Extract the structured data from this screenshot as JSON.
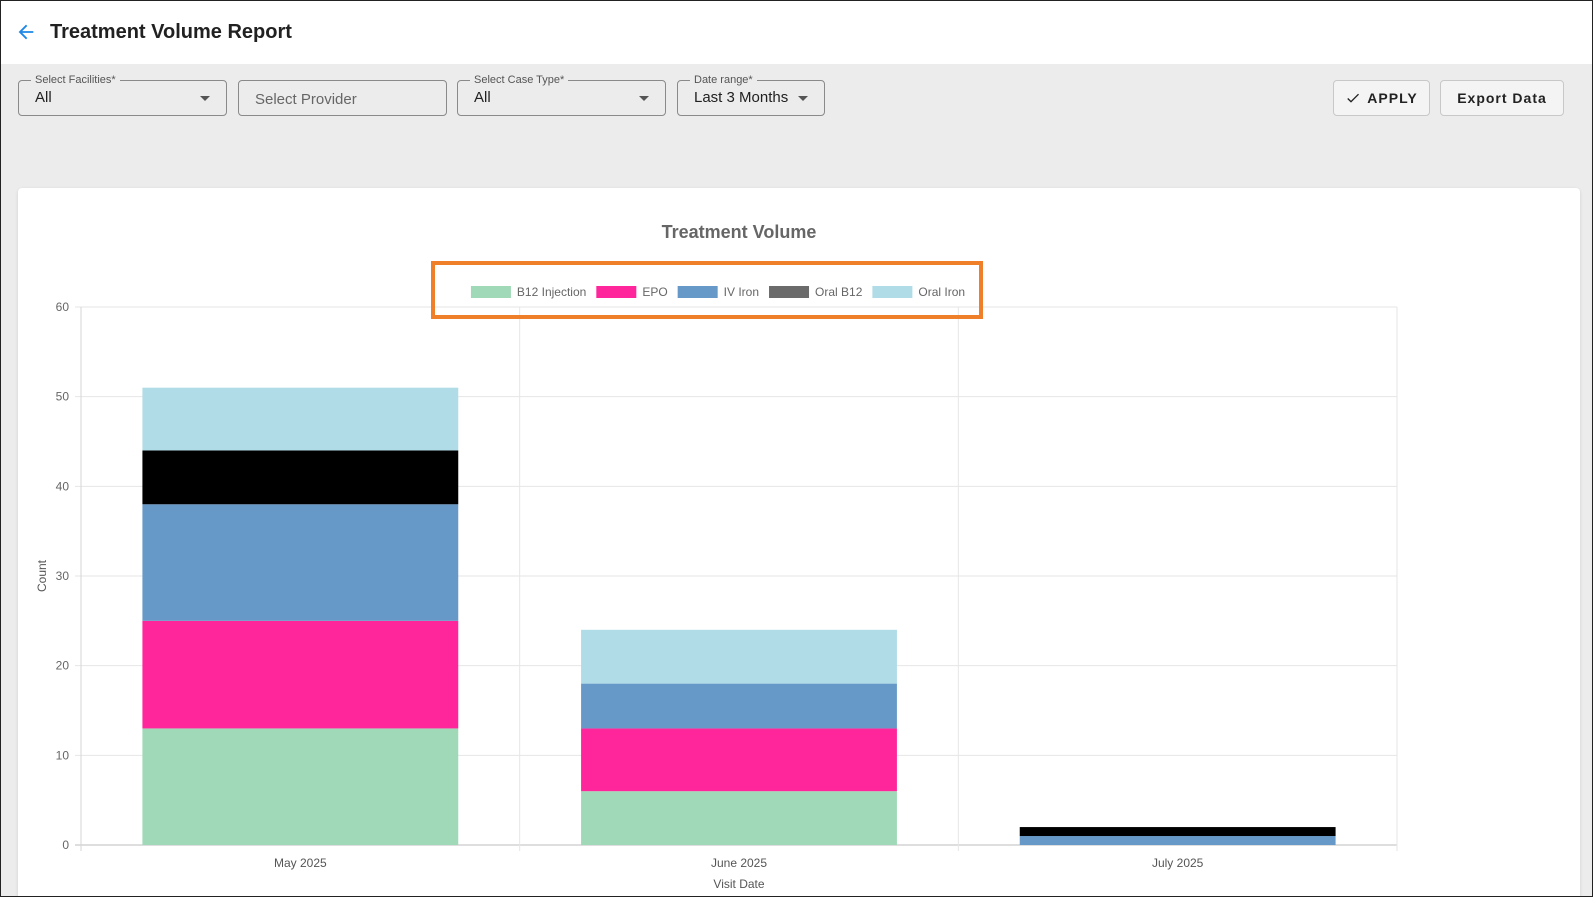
{
  "header": {
    "back_icon": "arrow-left-icon",
    "title": "Treatment Volume Report"
  },
  "filters": {
    "facilities": {
      "label": "Select Facilities*",
      "value": "All"
    },
    "provider": {
      "placeholder": "Select Provider"
    },
    "case_type": {
      "label": "Select Case Type*",
      "value": "All"
    },
    "date_range": {
      "label": "Date range*",
      "value": "Last 3 Months"
    }
  },
  "actions": {
    "apply_label": "APPLY",
    "apply_icon": "check-icon",
    "export_label": "Export Data"
  },
  "colors": {
    "accent": "#1e88e5",
    "highlight": "#f07f2a"
  },
  "chart_data": {
    "type": "bar",
    "stacked": true,
    "title": "Treatment Volume",
    "xlabel": "Visit Date",
    "ylabel": "Count",
    "ylim": [
      0,
      60
    ],
    "yticks": [
      0,
      10,
      20,
      30,
      40,
      50,
      60
    ],
    "categories": [
      "May 2025",
      "June 2025",
      "July 2025"
    ],
    "legend_position": "top",
    "grid": true,
    "series": [
      {
        "name": "B12 Injection",
        "color": "#9fd9b7",
        "values": [
          13,
          6,
          0
        ]
      },
      {
        "name": "EPO",
        "color": "#ff269c",
        "values": [
          12,
          7,
          0
        ]
      },
      {
        "name": "IV Iron",
        "color": "#6699c7",
        "values": [
          13,
          5,
          1
        ]
      },
      {
        "name": "Oral B12",
        "color": "#000000",
        "legend_color": "#6b6b6b",
        "values": [
          6,
          0,
          1
        ]
      },
      {
        "name": "Oral Iron",
        "color": "#afdce6",
        "values": [
          7,
          6,
          0
        ]
      }
    ]
  }
}
